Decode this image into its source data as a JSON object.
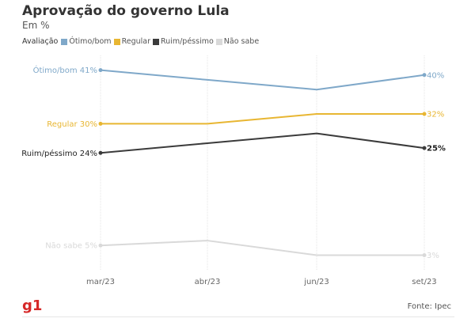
{
  "header": {
    "title": "Aprovação do governo Lula",
    "subtitle": "Em %"
  },
  "legend": {
    "title": "Avaliação",
    "items": [
      {
        "label": "Ótimo/bom",
        "color": "#7fa8c9"
      },
      {
        "label": "Regular",
        "color": "#e8b632"
      },
      {
        "label": "Ruim/péssimo",
        "color": "#3b3b3b"
      },
      {
        "label": "Não sabe",
        "color": "#d9d9d9"
      }
    ]
  },
  "chart_data": {
    "type": "line",
    "title": "Aprovação do governo Lula",
    "subtitle": "Em %",
    "x": [
      "mar/23",
      "abr/23",
      "jun/23",
      "set/23"
    ],
    "ylim": [
      0,
      45
    ],
    "grid": "vertical",
    "legend_position": "top-left",
    "series": [
      {
        "name": "Ótimo/bom",
        "color": "#7fa8c9",
        "values": [
          41,
          39,
          37,
          40
        ],
        "start_label": "Ótimo/bom 41%",
        "end_label": "40%"
      },
      {
        "name": "Regular",
        "color": "#e8b632",
        "values": [
          30,
          30,
          32,
          32
        ],
        "start_label": "Regular 30%",
        "end_label": "32%"
      },
      {
        "name": "Ruim/péssimo",
        "color": "#3b3b3b",
        "values": [
          24,
          26,
          28,
          25
        ],
        "start_label": "Ruim/péssimo 24%",
        "end_label": "25%"
      },
      {
        "name": "Não sabe",
        "color": "#d9d9d9",
        "values": [
          5,
          6,
          3,
          3
        ],
        "start_label": "Não sabe 5%",
        "end_label": "3%"
      }
    ]
  },
  "footer": {
    "logo": "g1",
    "source": "Fonte: Ipec"
  }
}
